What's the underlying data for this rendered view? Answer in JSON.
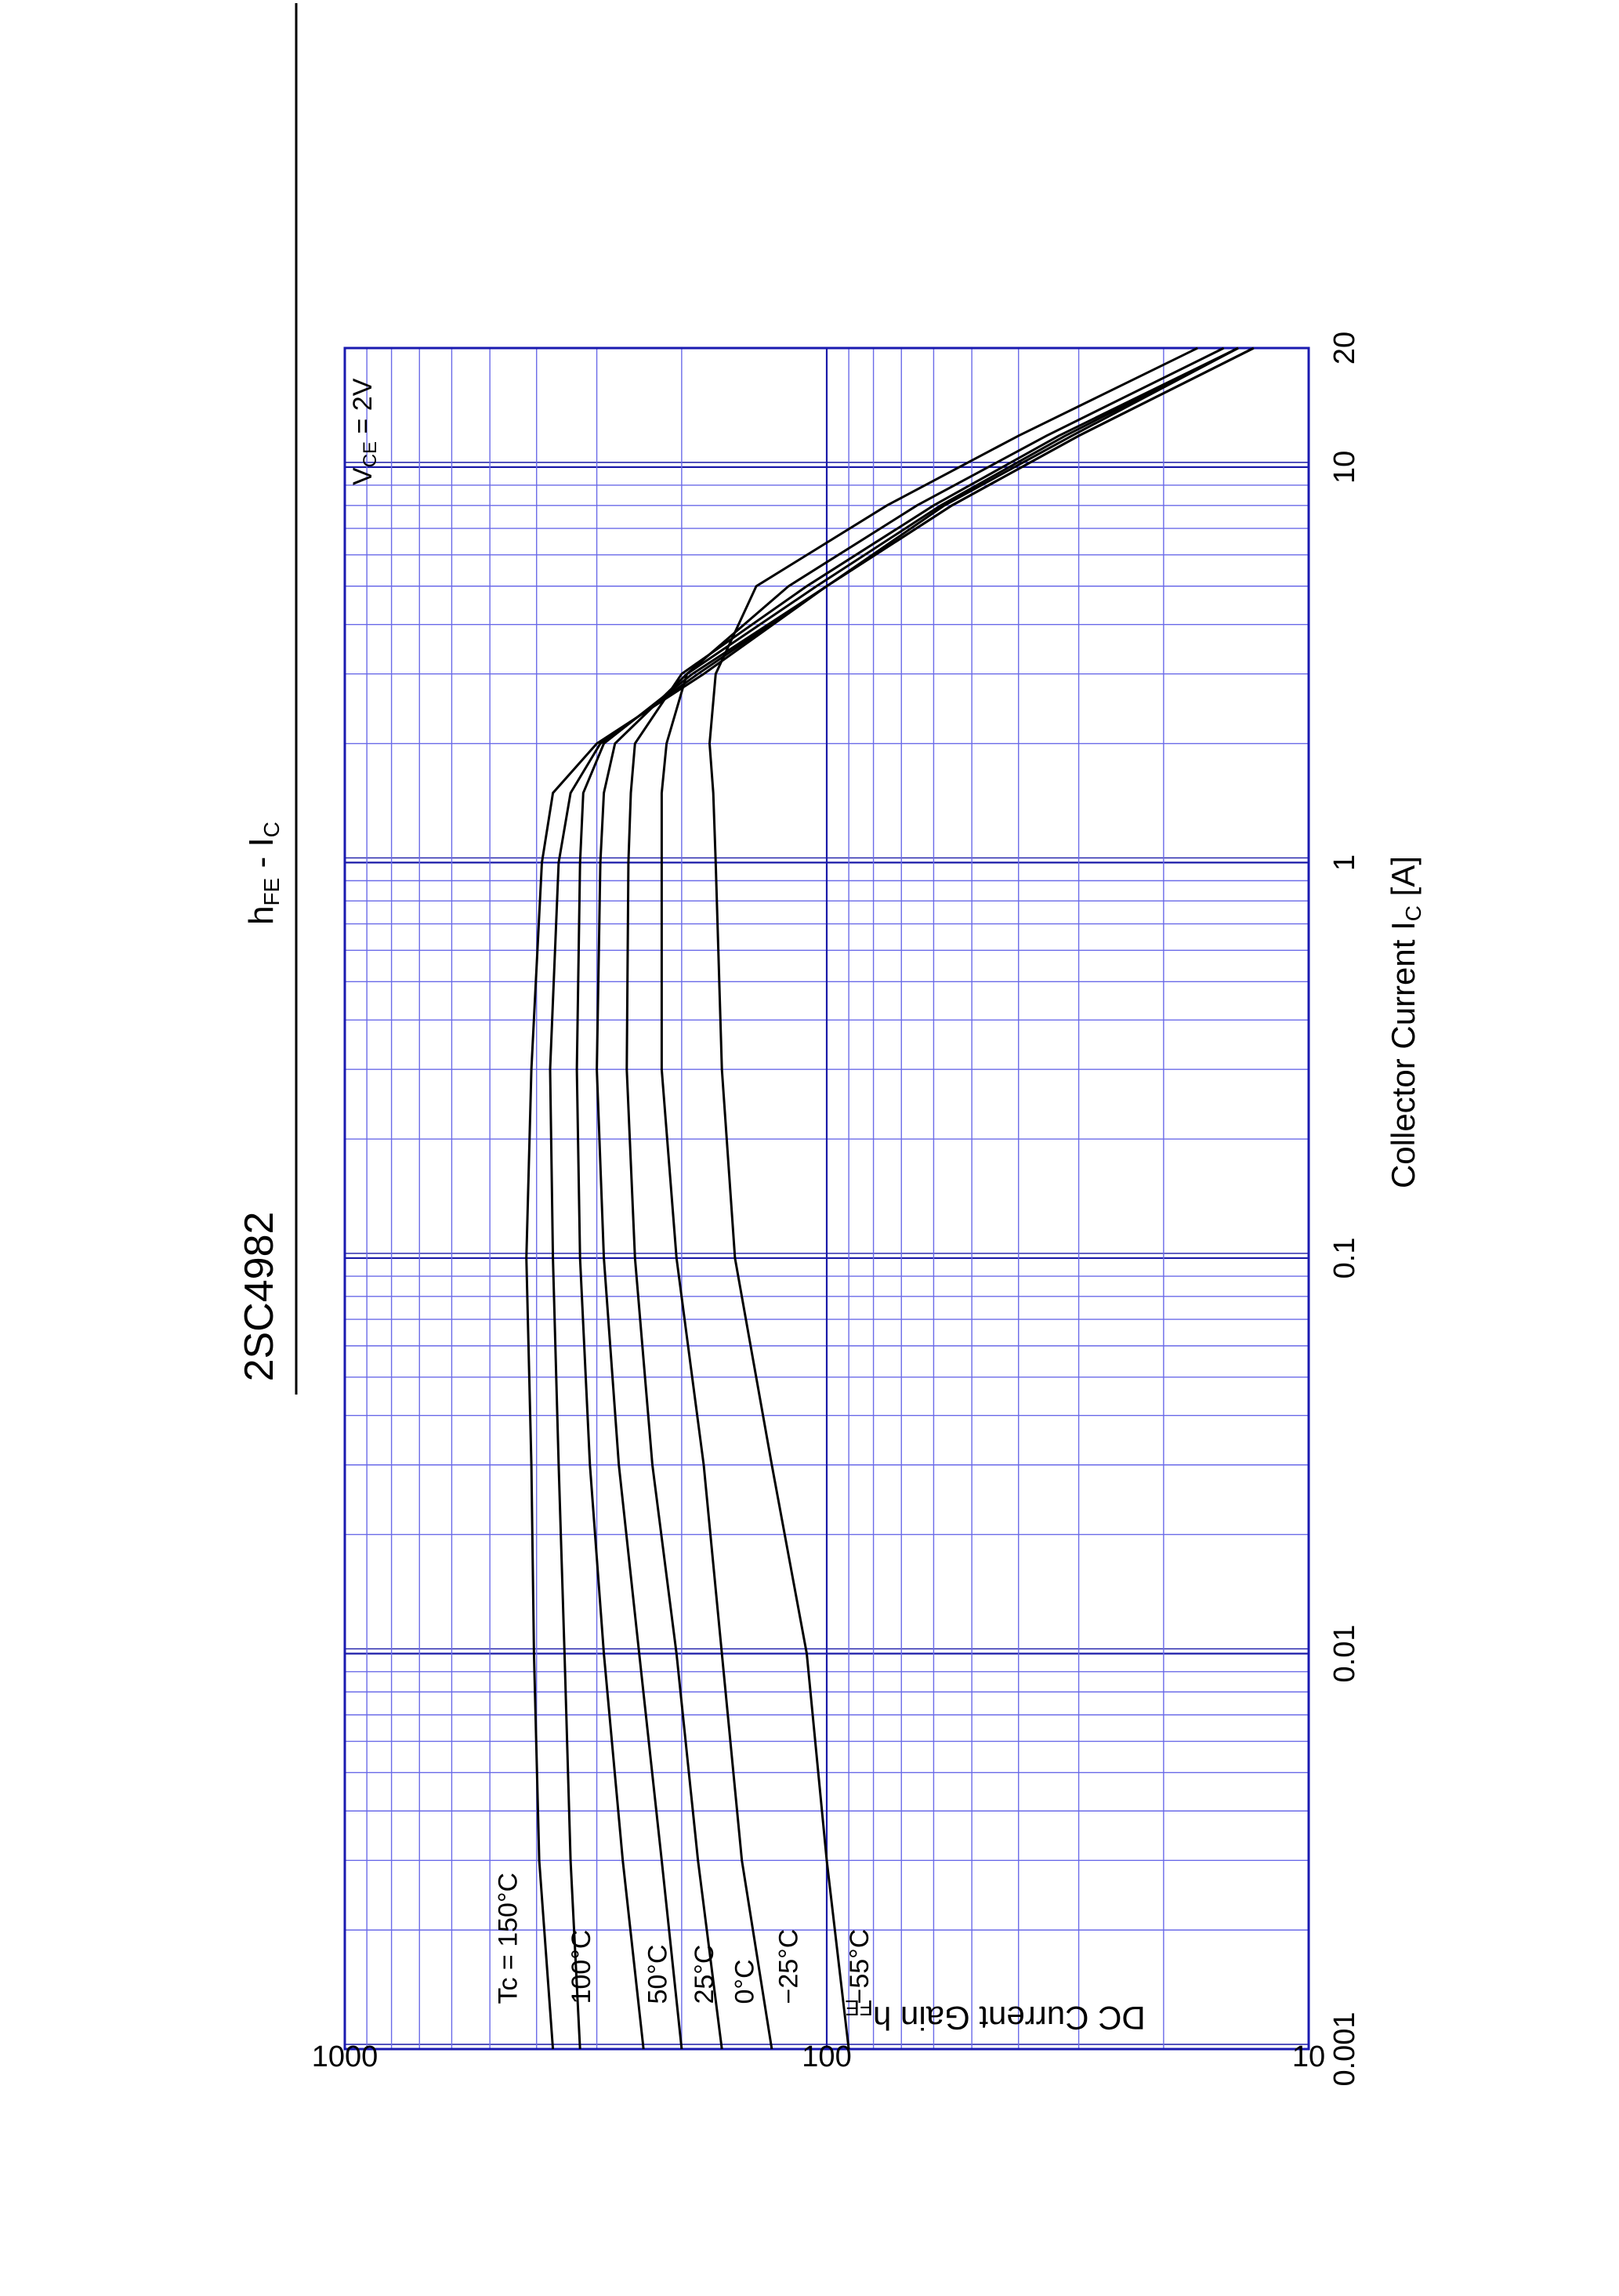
{
  "chart_data": {
    "type": "line",
    "title": "2SC4982",
    "subtitle": "h_FE - I_C",
    "subtitle_main": "h",
    "subtitle_sub1": "FE",
    "subtitle_mid": " - I",
    "subtitle_sub2": "C",
    "xlabel": "Collector Current  I",
    "xlabel_sub": "C",
    "xlabel_unit": " [A]",
    "ylabel": "DC Current Gain  h",
    "ylabel_sub": "FE",
    "condition": "V",
    "condition_sub": "CE",
    "condition_value": " = 2V",
    "x_scale": "log",
    "y_scale": "log",
    "xlim": [
      0.001,
      20
    ],
    "ylim": [
      10,
      1000
    ],
    "x_ticks": [
      {
        "value": 0.001,
        "label": "0.001"
      },
      {
        "value": 0.01,
        "label": "0.01"
      },
      {
        "value": 0.1,
        "label": "0.1"
      },
      {
        "value": 1,
        "label": "1"
      },
      {
        "value": 10,
        "label": "10"
      },
      {
        "value": 20,
        "label": "20"
      }
    ],
    "y_ticks": [
      {
        "value": 10,
        "label": "10"
      },
      {
        "value": 100,
        "label": "100"
      },
      {
        "value": 1000,
        "label": "1000"
      }
    ],
    "grid": true,
    "colors": {
      "grid_minor": "#6a6ae8",
      "grid_major": "#1a1aa8",
      "frame": "#1a1ab0",
      "curve": "#000000"
    },
    "series": [
      {
        "name": "Tc = 150°C",
        "label_value_x": 0.0013,
        "label_value_y": 440,
        "x": [
          0.001,
          0.003,
          0.01,
          0.03,
          0.1,
          0.3,
          1,
          1.5,
          2,
          3,
          5,
          8,
          12,
          20
        ],
        "y": [
          370,
          395,
          405,
          410,
          420,
          410,
          390,
          370,
          300,
          180,
          100,
          55,
          30,
          13
        ]
      },
      {
        "name": "100°C",
        "label_value_x": 0.0013,
        "label_value_y": 310,
        "x": [
          0.001,
          0.003,
          0.01,
          0.03,
          0.1,
          0.3,
          1,
          1.5,
          2,
          3,
          5,
          8,
          12,
          20
        ],
        "y": [
          325,
          340,
          350,
          360,
          370,
          375,
          360,
          340,
          295,
          185,
          100,
          55,
          30,
          13
        ]
      },
      {
        "name": "50°C",
        "label_value_x": 0.0013,
        "label_value_y": 215,
        "x": [
          0.001,
          0.003,
          0.01,
          0.03,
          0.1,
          0.3,
          1,
          1.5,
          2,
          3,
          5,
          8,
          12,
          20
        ],
        "y": [
          240,
          265,
          290,
          310,
          325,
          330,
          325,
          320,
          290,
          190,
          100,
          57,
          31,
          14
        ]
      },
      {
        "name": "25°C",
        "label_value_x": 0.0013,
        "label_value_y": 172,
        "x": [
          0.001,
          0.003,
          0.01,
          0.03,
          0.1,
          0.3,
          1,
          1.5,
          2,
          3,
          5,
          8,
          12,
          20
        ],
        "y": [
          200,
          220,
          245,
          270,
          290,
          300,
          295,
          290,
          275,
          195,
          105,
          58,
          32,
          14
        ]
      },
      {
        "name": "0°C",
        "label_value_x": 0.0013,
        "label_value_y": 142,
        "x": [
          0.001,
          0.003,
          0.01,
          0.03,
          0.1,
          0.3,
          1,
          1.5,
          2,
          3,
          5,
          8,
          12,
          20
        ],
        "y": [
          165,
          185,
          205,
          230,
          250,
          260,
          258,
          255,
          250,
          200,
          110,
          60,
          33,
          14
        ]
      },
      {
        "name": "−25°C",
        "label_value_x": 0.0013,
        "label_value_y": 115,
        "x": [
          0.001,
          0.003,
          0.01,
          0.03,
          0.1,
          0.3,
          1,
          1.5,
          2,
          3,
          5,
          8,
          12,
          20
        ],
        "y": [
          130,
          150,
          165,
          180,
          205,
          220,
          220,
          220,
          215,
          195,
          120,
          65,
          35,
          15
        ]
      },
      {
        "name": "−55°C",
        "label_value_x": 0.0013,
        "label_value_y": 82,
        "x": [
          0.001,
          0.003,
          0.01,
          0.03,
          0.1,
          0.3,
          1,
          1.5,
          2,
          3,
          5,
          8,
          12,
          20
        ],
        "y": [
          90,
          100,
          110,
          130,
          155,
          165,
          170,
          172,
          175,
          170,
          140,
          75,
          40,
          17
        ]
      }
    ]
  }
}
